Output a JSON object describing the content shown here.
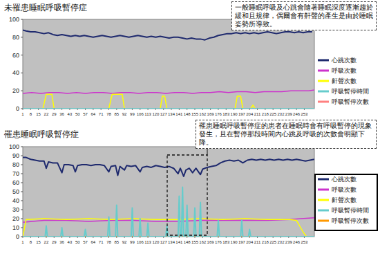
{
  "chart_data": [
    {
      "type": "line",
      "title": "未罹患睡眠呼吸暫停症",
      "annotation": "一般睡眠呼吸及心跳會隨著睡眠深度逐漸趨於緩和且規律，偶爾會有鼾聲的產生是由於睡眠姿勢所導致。",
      "xlim": [
        1,
        262
      ],
      "ylim": [
        0,
        100
      ],
      "xticks": [
        1,
        8,
        15,
        22,
        29,
        36,
        43,
        50,
        57,
        64,
        71,
        78,
        85,
        92,
        99,
        106,
        113,
        120,
        127,
        134,
        141,
        148,
        155,
        162,
        169,
        176,
        183,
        190,
        197,
        204,
        211,
        218,
        225,
        232,
        239,
        246,
        253
      ],
      "yticks": [
        0,
        20,
        40,
        60,
        80,
        100
      ],
      "grid": false,
      "legend": "right",
      "series": [
        {
          "name": "心跳次數",
          "color": "#1f2a6e",
          "x": [
            1,
            4,
            8,
            12,
            16,
            20,
            24,
            28,
            32,
            36,
            40,
            44,
            48,
            52,
            56,
            60,
            64,
            68,
            72,
            76,
            80,
            84,
            88,
            92,
            96,
            100,
            104,
            108,
            112,
            116,
            120,
            124,
            128,
            132,
            136,
            140,
            144,
            148,
            152,
            156,
            160,
            164,
            168,
            172,
            176,
            180,
            184,
            188,
            192,
            196,
            200,
            204,
            208,
            212,
            216,
            220,
            224,
            228,
            232,
            236,
            240,
            244,
            248,
            252,
            256,
            260
          ],
          "values": [
            88,
            87,
            86,
            86,
            85,
            84,
            85,
            83,
            82,
            83,
            82,
            81,
            82,
            81,
            82,
            81,
            80,
            81,
            82,
            81,
            80,
            81,
            82,
            81,
            80,
            81,
            82,
            81,
            80,
            81,
            80,
            81,
            80,
            79,
            80,
            80,
            79,
            78,
            79,
            78,
            78,
            77,
            79,
            80,
            82,
            83,
            84,
            84,
            85,
            84,
            85,
            84,
            85,
            84,
            85,
            86,
            85,
            84,
            85,
            86,
            86,
            85,
            86,
            85,
            86,
            86
          ]
        },
        {
          "name": "呼吸次數",
          "color": "#cc33cc",
          "x": [
            1,
            9,
            17,
            25,
            33,
            41,
            49,
            57,
            65,
            73,
            81,
            89,
            97,
            105,
            113,
            121,
            129,
            137,
            145,
            153,
            161,
            169,
            177,
            185,
            193,
            201,
            209,
            217,
            225,
            233,
            241,
            249,
            257,
            262
          ],
          "values": [
            17,
            18,
            17,
            18,
            18,
            17,
            18,
            17,
            18,
            18,
            17,
            18,
            18,
            17,
            18,
            18,
            17,
            18,
            18,
            17,
            18,
            18,
            19,
            18,
            19,
            19,
            18,
            19,
            19,
            19,
            20,
            20,
            20,
            21
          ]
        },
        {
          "name": "鼾聲次數",
          "color": "#ffff00",
          "x": [
            1,
            19,
            22,
            27,
            29,
            78,
            81,
            90,
            92,
            124,
            126,
            128,
            130,
            191,
            193,
            196,
            198,
            205,
            207,
            209,
            262
          ],
          "values": [
            0,
            0,
            16,
            16,
            0,
            0,
            16,
            16,
            0,
            0,
            14,
            14,
            0,
            0,
            14,
            14,
            0,
            0,
            4,
            0,
            0
          ]
        },
        {
          "name": "呼吸暫停時間",
          "color": "#66cccc",
          "x": [
            1,
            262
          ],
          "values": [
            0,
            0
          ]
        },
        {
          "name": "呼吸暫停次數",
          "color": "#ff8080",
          "x": [
            1,
            262
          ],
          "values": [
            0,
            0
          ]
        }
      ]
    },
    {
      "type": "line",
      "title": "罹患睡眠呼吸暫停症",
      "annotation": "罹患睡眠呼吸暫停症的患者在睡眠時會有呼吸暫停的現象發生，且在暫停那段時間內心跳及呼吸的次數會明顯下降。",
      "xlim": [
        1,
        262
      ],
      "ylim": [
        0,
        100
      ],
      "xticks": [
        1,
        8,
        15,
        22,
        29,
        36,
        43,
        50,
        57,
        64,
        71,
        78,
        85,
        92,
        99,
        106,
        113,
        120,
        127,
        134,
        141,
        148,
        155,
        162,
        169,
        176,
        183,
        190,
        197,
        204,
        211,
        218,
        225,
        232,
        239,
        246,
        253
      ],
      "yticks": [
        0,
        10,
        20,
        30,
        40,
        50,
        60,
        70,
        80,
        90,
        100
      ],
      "grid": false,
      "legend": "right",
      "series": [
        {
          "name": "心跳次數",
          "color": "#1f2a6e",
          "x": [
            1,
            4,
            8,
            12,
            16,
            20,
            22,
            24,
            28,
            32,
            36,
            38,
            42,
            46,
            48,
            50,
            54,
            58,
            62,
            66,
            70,
            74,
            78,
            80,
            84,
            86,
            88,
            92,
            94,
            98,
            102,
            106,
            108,
            112,
            116,
            120,
            124,
            128,
            132,
            136,
            140,
            142,
            145,
            147,
            150,
            153,
            156,
            160,
            162,
            166,
            170,
            174,
            178,
            182,
            186,
            190,
            194,
            198,
            202,
            206,
            210,
            214,
            218,
            222,
            226,
            230,
            234,
            238,
            242,
            246,
            250,
            254,
            258,
            262
          ],
          "values": [
            88,
            88,
            86,
            85,
            84,
            84,
            76,
            83,
            82,
            82,
            71,
            80,
            80,
            79,
            72,
            79,
            80,
            80,
            79,
            80,
            80,
            79,
            72,
            78,
            79,
            68,
            78,
            74,
            79,
            78,
            79,
            72,
            77,
            78,
            77,
            79,
            78,
            77,
            78,
            76,
            70,
            76,
            67,
            74,
            76,
            71,
            76,
            69,
            75,
            77,
            78,
            79,
            82,
            84,
            85,
            84,
            85,
            82,
            85,
            86,
            85,
            86,
            85,
            86,
            85,
            86,
            85,
            86,
            85,
            86,
            85,
            84,
            85,
            86
          ]
        },
        {
          "name": "呼吸次數",
          "color": "#cc33cc",
          "x": [
            1,
            20,
            40,
            60,
            80,
            100,
            120,
            140,
            160,
            180,
            200,
            220,
            240,
            250,
            262
          ],
          "values": [
            16,
            18,
            18,
            17,
            18,
            18,
            17,
            17,
            18,
            18,
            18,
            18,
            19,
            20,
            21
          ]
        },
        {
          "name": "鼾聲次數",
          "color": "#ffff00",
          "x": [
            1,
            4,
            20,
            40,
            60,
            80,
            100,
            120,
            140,
            160,
            180,
            200,
            220,
            240,
            246,
            252,
            255,
            262
          ],
          "values": [
            0,
            19,
            20,
            19,
            20,
            19,
            20,
            19,
            19,
            20,
            19,
            20,
            19,
            19,
            18,
            5,
            0,
            0
          ]
        },
        {
          "name": "呼吸暫停時間",
          "color": "#66cccc",
          "x": [
            1,
            21,
            22,
            23,
            35,
            36,
            37,
            56,
            57,
            58,
            77,
            78,
            79,
            84,
            85,
            86,
            98,
            99,
            100,
            105,
            106,
            107,
            112,
            113,
            114,
            129,
            130,
            131,
            140,
            141,
            142,
            143,
            144,
            145,
            147,
            148,
            149,
            154,
            155,
            156,
            159,
            160,
            161,
            175,
            176,
            177,
            196,
            197,
            198,
            203,
            204,
            205,
            262
          ],
          "values": [
            0,
            0,
            12,
            0,
            0,
            10,
            0,
            0,
            8,
            0,
            0,
            22,
            0,
            0,
            35,
            0,
            0,
            32,
            0,
            0,
            20,
            0,
            0,
            15,
            0,
            0,
            12,
            0,
            0,
            45,
            0,
            0,
            55,
            0,
            0,
            35,
            0,
            0,
            32,
            0,
            0,
            38,
            0,
            0,
            18,
            0,
            0,
            18,
            0,
            0,
            8,
            0,
            0
          ]
        },
        {
          "name": "呼吸暫停次數",
          "color": "#ff9900",
          "x": [
            1,
            262
          ],
          "values": [
            0,
            0
          ]
        }
      ]
    }
  ]
}
